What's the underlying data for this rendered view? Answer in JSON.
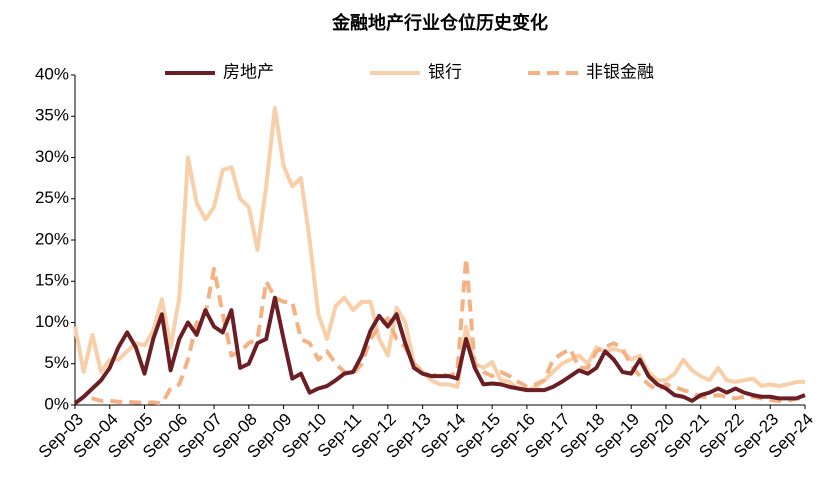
{
  "chart_data": {
    "type": "line",
    "title": "金融地产行业仓位历史变化",
    "categories": [
      "Sep-03",
      null,
      null,
      null,
      "Sep-04",
      null,
      null,
      null,
      "Sep-05",
      null,
      null,
      null,
      "Sep-06",
      null,
      null,
      null,
      "Sep-07",
      null,
      null,
      null,
      "Sep-08",
      null,
      null,
      null,
      "Sep-09",
      null,
      null,
      null,
      "Sep-10",
      null,
      null,
      null,
      "Sep-11",
      null,
      null,
      null,
      "Sep-12",
      null,
      null,
      null,
      "Sep-13",
      null,
      null,
      null,
      "Sep-14",
      null,
      null,
      null,
      "Sep-15",
      null,
      null,
      null,
      "Sep-16",
      null,
      null,
      null,
      "Sep-17",
      null,
      null,
      null,
      "Sep-18",
      null,
      null,
      null,
      "Sep-19",
      null,
      null,
      null,
      "Sep-20",
      null,
      null,
      null,
      "Sep-21",
      null,
      null,
      null,
      "Sep-22",
      null,
      null,
      null,
      "Sep-23",
      null,
      null,
      null,
      "Sep-24"
    ],
    "series": [
      {
        "name": "房地产",
        "color": "#6b1f24",
        "line_style": "solid",
        "values": [
          0.2,
          1,
          2,
          3,
          4.5,
          7,
          8.8,
          7,
          3.8,
          8,
          11,
          4.2,
          8,
          10,
          8.5,
          11.5,
          9.5,
          8.8,
          11.5,
          4.5,
          5,
          7.5,
          8,
          13,
          8,
          3.2,
          3.8,
          1.5,
          2,
          2.3,
          3,
          3.8,
          4,
          6,
          9,
          10.8,
          9.5,
          11,
          7.5,
          4.5,
          3.8,
          3.5,
          3.5,
          3.5,
          3.2,
          8,
          4.5,
          2.5,
          2.6,
          2.5,
          2.2,
          2,
          1.8,
          1.8,
          1.8,
          2.2,
          2.8,
          3.5,
          4.2,
          3.8,
          4.5,
          6.5,
          5.5,
          4,
          3.8,
          5.5,
          3.5,
          2.5,
          2,
          1.2,
          1,
          0.5,
          1.2,
          1.5,
          2,
          1.5,
          2,
          1.5,
          1.2,
          1,
          1,
          0.8,
          0.8,
          0.8,
          1.2
        ]
      },
      {
        "name": "银行",
        "color": "#f8cfa8",
        "line_style": "solid",
        "values": [
          9.5,
          4,
          8.5,
          4,
          5.5,
          5.5,
          6.5,
          7.5,
          7.2,
          9,
          12.8,
          7,
          13,
          30,
          24.5,
          22.5,
          24,
          28.5,
          28.8,
          25,
          24,
          18.8,
          26.5,
          36,
          29,
          26.5,
          27.5,
          20,
          11,
          8,
          12,
          13,
          11.5,
          12.5,
          12.5,
          8,
          6,
          11.8,
          10,
          5,
          4,
          3,
          2.5,
          2.5,
          2.2,
          9.5,
          5,
          4.5,
          5.2,
          3,
          2.8,
          2,
          1.8,
          2.2,
          3,
          4,
          5,
          5.5,
          6,
          5,
          7,
          6.5,
          6.8,
          6.5,
          5.5,
          6,
          4,
          3,
          3,
          3.8,
          5.5,
          4.2,
          3.5,
          3,
          4.5,
          3,
          2.8,
          3,
          3.2,
          2.3,
          2.5,
          2.3,
          2.5,
          2.8,
          2.8
        ]
      },
      {
        "name": "非银金融",
        "color": "#f4b183",
        "line_style": "dashed",
        "values": [
          0.2,
          1,
          0.8,
          0.5,
          0.5,
          0.4,
          0.4,
          0.3,
          0.3,
          0.3,
          0.2,
          2,
          2.5,
          5.5,
          10,
          11,
          16.5,
          11,
          6,
          6.5,
          7.5,
          8,
          15,
          13,
          12.5,
          12.5,
          8,
          7.5,
          5.5,
          6.5,
          5,
          4,
          3.8,
          5,
          8,
          9.5,
          10.5,
          8,
          7,
          5,
          4,
          3.5,
          3.8,
          3.5,
          4,
          17.8,
          5,
          4,
          3.5,
          4,
          3.5,
          2.8,
          2.2,
          2.5,
          3,
          5.5,
          6.2,
          6.8,
          4.5,
          4.5,
          6.5,
          7,
          7.5,
          6.8,
          4.8,
          3.5,
          2.5,
          1.8,
          2.5,
          2.2,
          1.8,
          1.5,
          1,
          1,
          1.2,
          1,
          0.8,
          1,
          1,
          0.8,
          0.6,
          0.5,
          0.5,
          0.8,
          0.8
        ]
      }
    ],
    "ylim": [
      0,
      40
    ],
    "yticks": [
      {
        "value": 0,
        "label": "0%"
      },
      {
        "value": 5,
        "label": "5%"
      },
      {
        "value": 10,
        "label": "10%"
      },
      {
        "value": 15,
        "label": "15%"
      },
      {
        "value": 20,
        "label": "20%"
      },
      {
        "value": 25,
        "label": "25%"
      },
      {
        "value": 30,
        "label": "30%"
      },
      {
        "value": 35,
        "label": "35%"
      },
      {
        "value": 40,
        "label": "40%"
      }
    ],
    "legend": "top"
  }
}
